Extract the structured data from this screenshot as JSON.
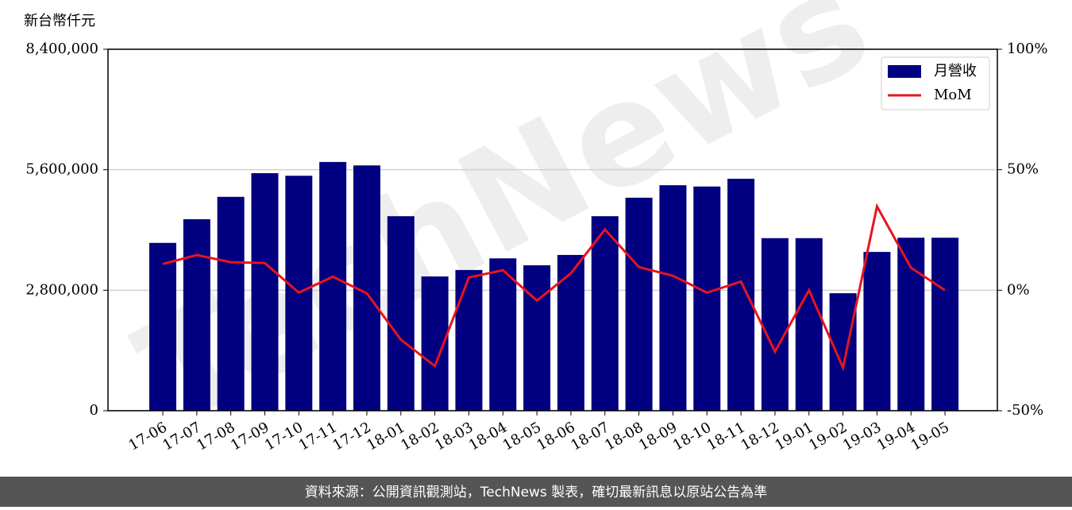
{
  "chart_data": {
    "type": "bar-line",
    "y_label": "新台幣仟元",
    "watermark": "TechNews",
    "source": "資料來源：公開資訊觀測站，TechNews 製表，確切最新訊息以原站公告為準",
    "categories": [
      "17-06",
      "17-07",
      "17-08",
      "17-09",
      "17-10",
      "17-11",
      "17-12",
      "18-01",
      "18-02",
      "18-03",
      "18-04",
      "18-05",
      "18-06",
      "18-07",
      "18-08",
      "18-09",
      "18-10",
      "18-11",
      "18-12",
      "19-01",
      "19-02",
      "19-03",
      "19-04",
      "19-05"
    ],
    "series": [
      {
        "name": "月營收",
        "type": "bar",
        "color": "#000080",
        "values": [
          3900000,
          4450000,
          4970000,
          5520000,
          5460000,
          5780000,
          5700000,
          4520000,
          3120000,
          3270000,
          3540000,
          3380000,
          3620000,
          4520000,
          4950000,
          5240000,
          5210000,
          5390000,
          4010000,
          4010000,
          2730000,
          3690000,
          4020000,
          4020000
        ]
      },
      {
        "name": "MoM",
        "type": "line",
        "axis": "y2",
        "color": "#e8141e",
        "values": [
          10.9,
          14.6,
          11.6,
          11.3,
          -1.0,
          5.6,
          -1.3,
          -20.5,
          -31.5,
          5.3,
          8.3,
          -4.3,
          7.0,
          25.2,
          9.6,
          6.0,
          -1.0,
          3.6,
          -25.5,
          0,
          -32.1,
          34.8,
          9.3,
          0
        ]
      }
    ],
    "ylim": [
      0,
      8400000
    ],
    "yticks": [
      0,
      {
        "value": 2800000,
        "label": "2,800,000"
      },
      {
        "value": 5600000,
        "label": "5,600,000"
      },
      {
        "value": 8400000,
        "label": "8,400,000"
      }
    ],
    "y2lim": [
      -50,
      100
    ],
    "y2ticks": [
      {
        "value": -50,
        "label": "-50%"
      },
      {
        "value": 0,
        "label": "0%"
      },
      {
        "value": 50,
        "label": "50%"
      },
      {
        "value": 100,
        "label": "100%"
      }
    ],
    "grid": true,
    "legend": "upper right"
  }
}
